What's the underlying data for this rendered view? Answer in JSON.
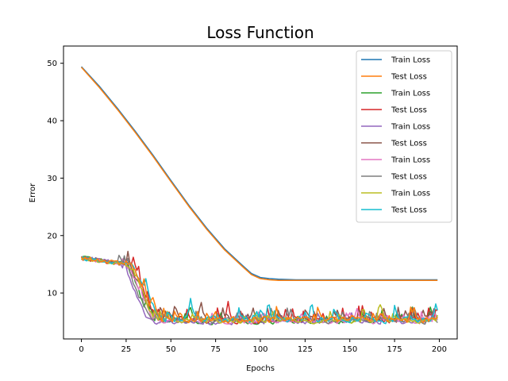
{
  "chart_data": {
    "type": "line",
    "title": "Loss Function",
    "xlabel": "Epochs",
    "ylabel": "Error",
    "xlim": [
      -10,
      210
    ],
    "ylim": [
      2,
      53
    ],
    "xticks": [
      0,
      25,
      50,
      75,
      100,
      125,
      150,
      175,
      200
    ],
    "yticks": [
      10,
      20,
      30,
      40,
      50
    ],
    "grid": false,
    "legend_position": "top-right",
    "series": [
      {
        "name": "Train Loss",
        "color": "#1f77b4",
        "kind": "smooth",
        "points": [
          [
            0,
            49.4
          ],
          [
            10,
            46.0
          ],
          [
            20,
            42.2
          ],
          [
            30,
            38.2
          ],
          [
            40,
            34.0
          ],
          [
            50,
            29.6
          ],
          [
            60,
            25.3
          ],
          [
            70,
            21.3
          ],
          [
            80,
            17.7
          ],
          [
            90,
            14.8
          ],
          [
            95,
            13.4
          ],
          [
            100,
            12.7
          ],
          [
            105,
            12.5
          ],
          [
            110,
            12.4
          ],
          [
            120,
            12.3
          ],
          [
            150,
            12.3
          ],
          [
            199,
            12.3
          ]
        ]
      },
      {
        "name": "Test Loss",
        "color": "#ff7f0e",
        "kind": "smooth",
        "points": [
          [
            0,
            49.3
          ],
          [
            10,
            45.8
          ],
          [
            20,
            42.0
          ],
          [
            30,
            38.0
          ],
          [
            40,
            33.8
          ],
          [
            50,
            29.4
          ],
          [
            60,
            25.1
          ],
          [
            70,
            21.1
          ],
          [
            80,
            17.5
          ],
          [
            90,
            14.6
          ],
          [
            95,
            13.2
          ],
          [
            100,
            12.5
          ],
          [
            105,
            12.3
          ],
          [
            110,
            12.2
          ],
          [
            120,
            12.2
          ],
          [
            150,
            12.2
          ],
          [
            199,
            12.2
          ]
        ]
      },
      {
        "name": "Train Loss",
        "color": "#2ca02c",
        "kind": "noisy",
        "start": 16.2,
        "end": 5.0,
        "drop_start": 22,
        "drop_end": 42,
        "amp": 1.3,
        "seed": 3
      },
      {
        "name": "Test Loss",
        "color": "#d62728",
        "kind": "noisy",
        "start": 16.0,
        "end": 5.2,
        "drop_start": 25,
        "drop_end": 45,
        "amp": 1.6,
        "seed": 7
      },
      {
        "name": "Train Loss",
        "color": "#9467bd",
        "kind": "noisy",
        "start": 16.3,
        "end": 4.9,
        "drop_start": 20,
        "drop_end": 40,
        "amp": 1.2,
        "seed": 11
      },
      {
        "name": "Test Loss",
        "color": "#8c564b",
        "kind": "noisy",
        "start": 16.1,
        "end": 5.3,
        "drop_start": 24,
        "drop_end": 44,
        "amp": 1.5,
        "seed": 17
      },
      {
        "name": "Train Loss",
        "color": "#e377c2",
        "kind": "noisy",
        "start": 16.0,
        "end": 5.0,
        "drop_start": 23,
        "drop_end": 43,
        "amp": 1.3,
        "seed": 23
      },
      {
        "name": "Test Loss",
        "color": "#7f7f7f",
        "kind": "noisy",
        "start": 16.2,
        "end": 5.2,
        "drop_start": 21,
        "drop_end": 41,
        "amp": 1.5,
        "seed": 29
      },
      {
        "name": "Train Loss",
        "color": "#bcbd22",
        "kind": "noisy",
        "start": 16.0,
        "end": 5.1,
        "drop_start": 24,
        "drop_end": 44,
        "amp": 1.3,
        "seed": 31
      },
      {
        "name": "Test Loss",
        "color": "#17becf",
        "kind": "noisy",
        "start": 16.0,
        "end": 5.4,
        "drop_start": 26,
        "drop_end": 46,
        "amp": 1.8,
        "seed": 37
      },
      {
        "name": "Test Loss",
        "color": "#ff7f0e",
        "kind": "noisy",
        "start": 16.1,
        "end": 5.3,
        "drop_start": 25,
        "drop_end": 45,
        "amp": 1.7,
        "seed": 41
      }
    ],
    "legend": [
      {
        "label": "Train Loss",
        "color": "#1f77b4"
      },
      {
        "label": "Test Loss",
        "color": "#ff7f0e"
      },
      {
        "label": "Train Loss",
        "color": "#2ca02c"
      },
      {
        "label": "Test Loss",
        "color": "#d62728"
      },
      {
        "label": "Train Loss",
        "color": "#9467bd"
      },
      {
        "label": "Test Loss",
        "color": "#8c564b"
      },
      {
        "label": "Train Loss",
        "color": "#e377c2"
      },
      {
        "label": "Test Loss",
        "color": "#7f7f7f"
      },
      {
        "label": "Train Loss",
        "color": "#bcbd22"
      },
      {
        "label": "Test Loss",
        "color": "#17becf"
      }
    ]
  }
}
